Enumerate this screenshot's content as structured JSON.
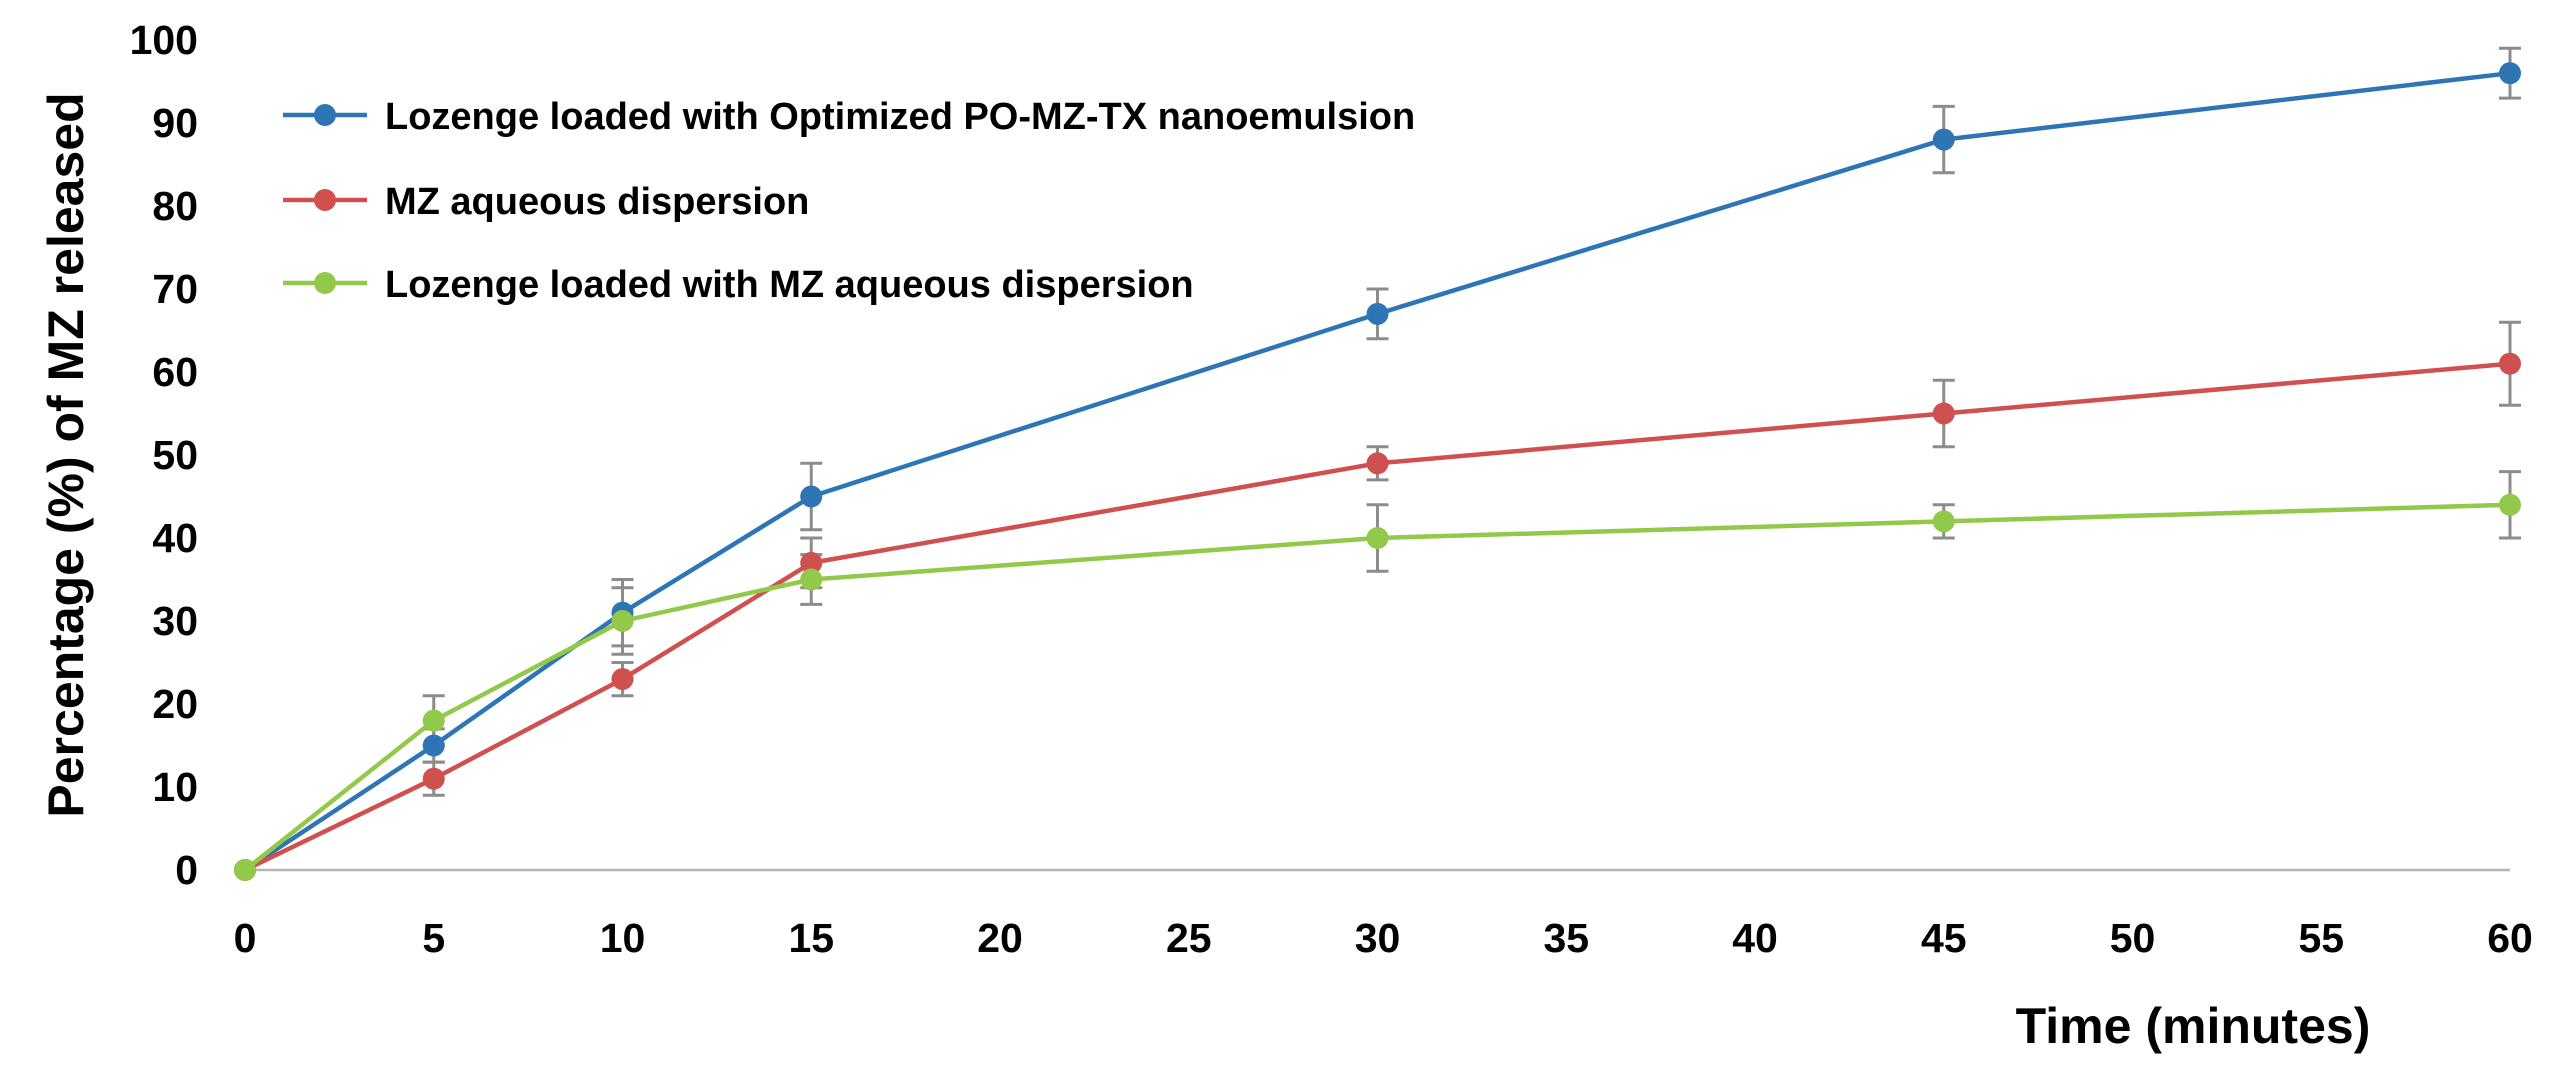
{
  "chart_data": {
    "type": "line",
    "title": "",
    "xlabel": "Time (minutes)",
    "ylabel": "Percentage (%) of MZ released",
    "xlim": [
      0,
      60
    ],
    "ylim": [
      0,
      100
    ],
    "xticks": [
      0,
      5,
      10,
      15,
      20,
      25,
      30,
      35,
      40,
      45,
      50,
      55,
      60
    ],
    "yticks": [
      0,
      10,
      20,
      30,
      40,
      50,
      60,
      70,
      80,
      90,
      100
    ],
    "grid": false,
    "legend_position": "top-left",
    "x": [
      0,
      5,
      10,
      15,
      30,
      45,
      60
    ],
    "series": [
      {
        "name": "Lozenge loaded with Optimized PO-MZ-TX nanoemulsion",
        "color": "#2e75b6",
        "marker_color": "#2e75b6",
        "values": [
          0,
          15,
          31,
          45,
          67,
          88,
          96
        ],
        "errors": [
          0,
          2,
          4,
          4,
          3,
          4,
          3
        ]
      },
      {
        "name": "MZ aqueous dispersion",
        "color": "#d05050",
        "marker_color": "#d05050",
        "values": [
          0,
          11,
          23,
          37,
          49,
          55,
          61
        ],
        "errors": [
          0,
          2,
          2,
          3,
          2,
          4,
          5
        ]
      },
      {
        "name": "Lozenge loaded with MZ aqueous dispersion",
        "color": "#92c94a",
        "marker_color": "#92c94a",
        "values": [
          0,
          18,
          30,
          35,
          40,
          42,
          44
        ],
        "errors": [
          0,
          3,
          4,
          3,
          4,
          2,
          4
        ]
      }
    ]
  }
}
